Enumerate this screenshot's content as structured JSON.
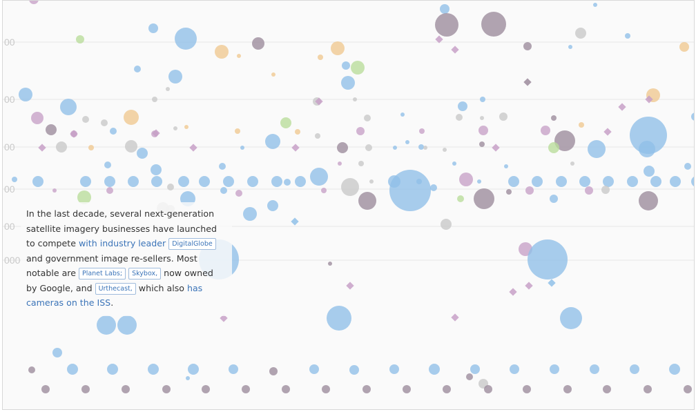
{
  "chart_data": {
    "type": "scatter",
    "title": "",
    "xlabel": "",
    "ylabel": "",
    "y_tick_labels": [
      "00",
      "00",
      "00",
      "00",
      "00",
      "000"
    ],
    "grid": true,
    "colors": {
      "commercial": "#8fbfe8",
      "government": "#c7a0c7",
      "military": "#9b8a9b",
      "civil": "#f0c890",
      "academic": "#b9dc9a",
      "other": "#c8c8c8"
    }
  },
  "caption": {
    "t1": "In the last decade, several next-generation satellite imagery businesses have launched to compete ",
    "link1": "with industry leader",
    "chip1": "DigitalGlobe",
    "t2": " and government image re-sellers. Most notable are ",
    "chip2": "Planet Labs;",
    "chip3": "Skybox,",
    "t3": " now owned by Google, and ",
    "chip4": "Urthecast,",
    "t4": " which also ",
    "link2": "has cameras on the ISS",
    "t5": "."
  }
}
